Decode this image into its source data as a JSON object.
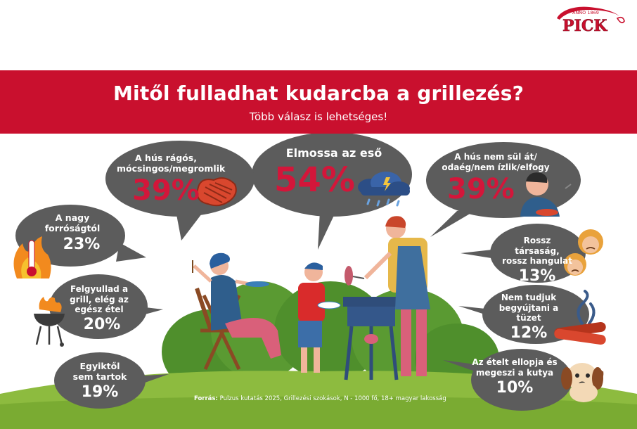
{
  "logo": {
    "brand": "PICK",
    "tagline": "ANNO 1869"
  },
  "header": {
    "title": "Mitől fulladhat kudarcba a grillezés?",
    "subtitle": "Több válasz is lehetséges!"
  },
  "chart_data": {
    "type": "bubble-infographic",
    "title": "Mitől fulladhat kudarcba a grillezés?",
    "subtitle": "Több válasz is lehetséges!",
    "unit": "%",
    "items": [
      {
        "label": "Elmossa az eső",
        "value": 54,
        "display": "54%"
      },
      {
        "label": "A hús rágós, mócsingos/megromlik",
        "value": 39,
        "display": "39%"
      },
      {
        "label": "A hús nem sül át/ odaég/nem ízlik/elfogy",
        "value": 39,
        "display": "39%"
      },
      {
        "label": "A nagy forróságtól",
        "value": 23,
        "display": "23%"
      },
      {
        "label": "Felgyullad a grill, elég az egész étel",
        "value": 20,
        "display": "20%"
      },
      {
        "label": "Egyiktől sem tartok",
        "value": 19,
        "display": "19%"
      },
      {
        "label": "Rossz társaság, rossz hangulat",
        "value": 13,
        "display": "13%"
      },
      {
        "label": "Nem tudjuk begyújtani a tüzet",
        "value": 12,
        "display": "12%"
      },
      {
        "label": "Az ételt ellopja és megeszi a kutya",
        "value": 10,
        "display": "10%"
      }
    ],
    "source": {
      "prefix": "Forrás:",
      "text": "Pulzus kutatás 2025, Grillezési szokások, N - 1000 fő, 18+ magyar lakosság"
    }
  },
  "colors": {
    "brand_red": "#c9102e",
    "percent_red": "#d3163a",
    "bubble_gray": "#5c5c5c",
    "grass_green": "#8dbb3f",
    "bush_green": "#4f8f2c"
  },
  "icons": [
    "steak-icon",
    "rain-cloud-icon",
    "thermometer-fire-icon",
    "grill-fire-icon",
    "burning-log-icon",
    "dog-icon",
    "sad-person-icon",
    "upset-faces-icon"
  ]
}
